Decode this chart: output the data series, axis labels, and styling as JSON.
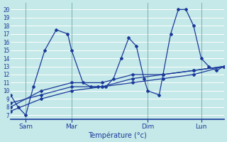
{
  "xlabel": "Température (°c)",
  "background_color": "#c5e8e8",
  "grid_color": "#b0d8d8",
  "line_color": "#1a3a9a",
  "yticks": [
    7,
    8,
    9,
    10,
    11,
    12,
    13,
    14,
    15,
    16,
    17,
    18,
    19,
    20
  ],
  "ylim": [
    6.5,
    20.8
  ],
  "xlim": [
    0,
    56
  ],
  "day_positions": [
    4,
    16,
    36,
    50
  ],
  "day_labels": [
    "Sam",
    "Mar",
    "Dim",
    "Lun"
  ],
  "day_vlines": [
    4,
    16,
    36,
    50
  ],
  "series0_x": [
    0,
    2,
    4,
    6,
    9,
    12,
    15,
    16,
    19,
    21,
    23,
    25,
    27,
    29,
    31,
    33,
    35,
    36,
    39,
    42,
    44,
    46,
    48,
    50,
    52,
    54,
    56
  ],
  "series0_y": [
    9.5,
    8.0,
    7.0,
    10.5,
    15.0,
    17.5,
    17.0,
    15.0,
    11.0,
    10.5,
    10.5,
    10.5,
    11.5,
    14.0,
    16.5,
    15.5,
    11.5,
    10.0,
    9.5,
    17.0,
    20.0,
    20.0,
    18.0,
    14.0,
    13.0,
    12.5,
    13.0
  ],
  "series1_x": [
    0,
    8,
    16,
    24,
    32,
    40,
    48,
    56
  ],
  "series1_y": [
    8.0,
    10.0,
    11.0,
    11.0,
    12.0,
    12.0,
    12.5,
    13.0
  ],
  "series2_x": [
    0,
    8,
    16,
    24,
    32,
    40,
    48,
    56
  ],
  "series2_y": [
    8.5,
    9.5,
    10.5,
    10.5,
    11.5,
    12.0,
    12.5,
    13.0
  ],
  "series3_x": [
    0,
    8,
    16,
    24,
    32,
    40,
    48,
    56
  ],
  "series3_y": [
    7.5,
    9.0,
    10.0,
    10.5,
    11.0,
    11.5,
    12.0,
    13.0
  ]
}
